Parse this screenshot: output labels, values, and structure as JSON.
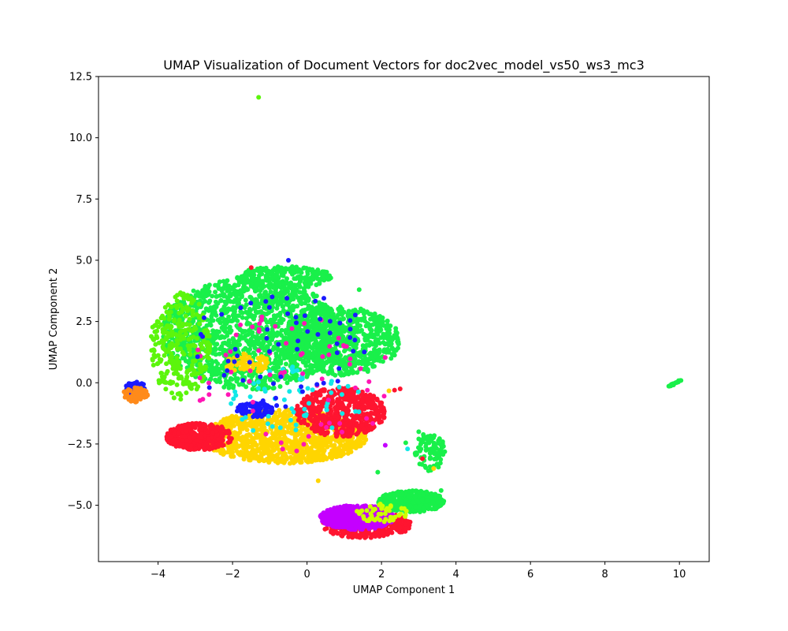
{
  "chart_data": {
    "type": "scatter",
    "title": "UMAP Visualization of Document Vectors for doc2vec_model_vs50_ws3_mc3",
    "xlabel": "UMAP Component 1",
    "ylabel": "UMAP Component 2",
    "xlim": [
      -5.6,
      10.8
    ],
    "ylim": [
      -7.3,
      12.5
    ],
    "xticks": [
      -4,
      -2,
      0,
      2,
      4,
      6,
      8,
      10
    ],
    "yticks": [
      -5.0,
      -2.5,
      0.0,
      2.5,
      5.0,
      7.5,
      10.0,
      12.5
    ],
    "xtick_labels": [
      "−4",
      "−2",
      "0",
      "2",
      "4",
      "6",
      "8",
      "10"
    ],
    "ytick_labels": [
      "−5.0",
      "−2.5",
      "0.0",
      "2.5",
      "5.0",
      "7.5",
      "10.0",
      "12.5"
    ],
    "grid": false,
    "legend": "none",
    "colors": {
      "green": "#19f04a",
      "lime": "#5cf50c",
      "red": "#ff1530",
      "yellow": "#ffd500",
      "purple": "#c400ff",
      "blue": "#1a1aff",
      "cyan": "#12e8e8",
      "magenta": "#ff16b5",
      "orange": "#ff8a1a",
      "yellowgreen": "#ccff00"
    },
    "clusters": [
      {
        "color": "green",
        "shape": "ellipse",
        "cx": -1.5,
        "cy": 2.0,
        "rx": 2.4,
        "ry": 2.3,
        "n": 1500
      },
      {
        "color": "green",
        "shape": "ellipse",
        "cx": 0.9,
        "cy": 1.7,
        "rx": 1.6,
        "ry": 1.4,
        "n": 700
      },
      {
        "color": "green",
        "shape": "ellipse",
        "cx": -0.6,
        "cy": 4.3,
        "rx": 1.3,
        "ry": 0.45,
        "n": 250
      },
      {
        "color": "lime",
        "shape": "ellipse",
        "cx": -3.4,
        "cy": 1.5,
        "rx": 0.8,
        "ry": 2.2,
        "n": 300
      },
      {
        "color": "yellow",
        "shape": "ellipse",
        "cx": -0.6,
        "cy": -2.2,
        "rx": 2.2,
        "ry": 1.1,
        "n": 1100
      },
      {
        "color": "yellow",
        "shape": "ellipse",
        "cx": -1.6,
        "cy": 0.8,
        "rx": 0.6,
        "ry": 0.4,
        "n": 80
      },
      {
        "color": "red",
        "shape": "ellipse",
        "cx": -2.9,
        "cy": -2.2,
        "rx": 0.9,
        "ry": 0.55,
        "n": 400
      },
      {
        "color": "red",
        "shape": "ellipse",
        "cx": 0.9,
        "cy": -1.2,
        "rx": 1.2,
        "ry": 1.0,
        "n": 550
      },
      {
        "color": "red",
        "shape": "ellipse",
        "cx": 1.6,
        "cy": -5.8,
        "rx": 1.2,
        "ry": 0.55,
        "n": 350
      },
      {
        "color": "purple",
        "shape": "ellipse",
        "cx": 1.35,
        "cy": -5.5,
        "rx": 1.0,
        "ry": 0.5,
        "n": 500
      },
      {
        "color": "green",
        "shape": "ellipse",
        "cx": 2.8,
        "cy": -4.85,
        "rx": 0.9,
        "ry": 0.45,
        "n": 300
      },
      {
        "color": "green",
        "shape": "ellipse",
        "cx": 3.3,
        "cy": -2.8,
        "rx": 0.4,
        "ry": 0.8,
        "n": 90
      },
      {
        "color": "blue",
        "shape": "ellipse",
        "cx": -1.4,
        "cy": -1.1,
        "rx": 0.5,
        "ry": 0.3,
        "n": 90
      },
      {
        "color": "blue",
        "shape": "ellipse",
        "cx": -4.6,
        "cy": -0.3,
        "rx": 0.3,
        "ry": 0.35,
        "n": 60
      },
      {
        "color": "orange",
        "shape": "ellipse",
        "cx": -4.6,
        "cy": -0.5,
        "rx": 0.35,
        "ry": 0.3,
        "n": 70
      },
      {
        "color": "cyan",
        "shape": "ellipse",
        "cx": -0.3,
        "cy": -0.8,
        "rx": 1.8,
        "ry": 1.5,
        "n": 60
      },
      {
        "color": "magenta",
        "shape": "ellipse",
        "cx": -0.5,
        "cy": 0.0,
        "rx": 2.8,
        "ry": 3.0,
        "n": 70
      },
      {
        "color": "blue",
        "shape": "ellipse",
        "cx": -0.8,
        "cy": 1.5,
        "rx": 2.5,
        "ry": 2.5,
        "n": 60
      },
      {
        "color": "yellowgreen",
        "shape": "ellipse",
        "cx": 2.0,
        "cy": -5.3,
        "rx": 0.7,
        "ry": 0.4,
        "n": 50
      },
      {
        "color": "green",
        "shape": "line",
        "x0": 9.7,
        "y0": -0.15,
        "x1": 10.05,
        "y1": 0.1,
        "n": 25
      }
    ],
    "points": [
      {
        "x": -1.3,
        "y": 11.65,
        "color": "lime"
      },
      {
        "x": 2.5,
        "y": -0.25,
        "color": "red"
      },
      {
        "x": 2.35,
        "y": -0.3,
        "color": "red"
      },
      {
        "x": 2.2,
        "y": -0.33,
        "color": "yellow"
      },
      {
        "x": 2.65,
        "y": -2.45,
        "color": "green"
      },
      {
        "x": 2.7,
        "y": -2.7,
        "color": "cyan"
      },
      {
        "x": 3.0,
        "y": -2.0,
        "color": "green"
      },
      {
        "x": 3.1,
        "y": -3.1,
        "color": "red"
      },
      {
        "x": 3.6,
        "y": -4.4,
        "color": "green"
      },
      {
        "x": 3.4,
        "y": -3.5,
        "color": "yellow"
      },
      {
        "x": 2.1,
        "y": -2.55,
        "color": "purple"
      },
      {
        "x": 1.9,
        "y": -3.65,
        "color": "green"
      },
      {
        "x": 0.3,
        "y": -4.0,
        "color": "yellow"
      },
      {
        "x": -1.5,
        "y": 4.7,
        "color": "red"
      },
      {
        "x": -0.5,
        "y": 5.0,
        "color": "blue"
      },
      {
        "x": 1.4,
        "y": 3.8,
        "color": "green"
      }
    ]
  }
}
